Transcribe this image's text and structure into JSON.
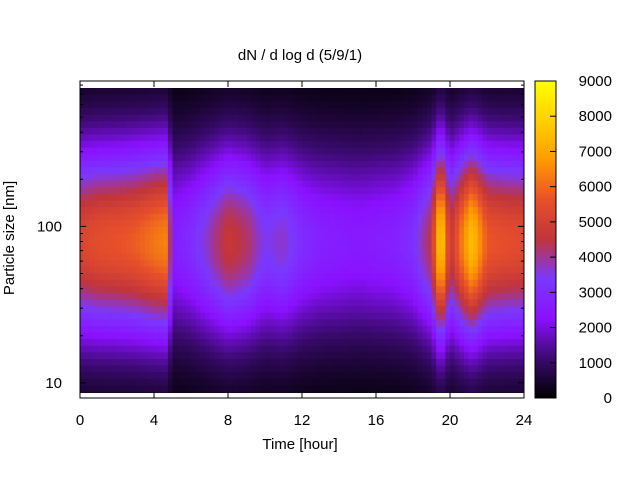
{
  "chart_data": {
    "type": "heatmap",
    "title": "dN / d log d (5/9/1)",
    "xlabel": "Time [hour]",
    "ylabel": "Particle size [nm]",
    "x_ticks": [
      "0",
      "4",
      "8",
      "12",
      "16",
      "20",
      "24"
    ],
    "x_tick_values": [
      0,
      4,
      8,
      12,
      16,
      20,
      24
    ],
    "xlim": [
      0,
      24
    ],
    "y_scale": "log",
    "y_ticks": [
      "10",
      "100"
    ],
    "y_tick_values": [
      10,
      100
    ],
    "ylim": [
      8,
      850
    ],
    "colorbar": {
      "ticks": [
        "0",
        "1000",
        "2000",
        "3000",
        "4000",
        "5000",
        "6000",
        "7000",
        "8000",
        "9000"
      ],
      "tick_values": [
        0,
        1000,
        2000,
        3000,
        4000,
        5000,
        6000,
        7000,
        8000,
        9000
      ],
      "range": [
        0,
        9000
      ],
      "colormap": [
        "#000000",
        "#3a0a6e",
        "#8a10ff",
        "#7a38ff",
        "#c0343c",
        "#e8502a",
        "#ff9a00",
        "#ffd000",
        "#ffff00"
      ]
    },
    "mode_peak_nm": 80,
    "hourly_peak_concentration": [
      {
        "hour": 0,
        "value": 5200
      },
      {
        "hour": 1,
        "value": 5500
      },
      {
        "hour": 2,
        "value": 5600
      },
      {
        "hour": 3,
        "value": 5800
      },
      {
        "hour": 4,
        "value": 6200
      },
      {
        "hour": 4.7,
        "value": 6400
      },
      {
        "hour": 5,
        "value": 2600
      },
      {
        "hour": 6,
        "value": 3000
      },
      {
        "hour": 7,
        "value": 3800
      },
      {
        "hour": 8,
        "value": 4700
      },
      {
        "hour": 9,
        "value": 4300
      },
      {
        "hour": 10,
        "value": 3400
      },
      {
        "hour": 11,
        "value": 3700
      },
      {
        "hour": 12,
        "value": 3000
      },
      {
        "hour": 13,
        "value": 2700
      },
      {
        "hour": 14,
        "value": 2600
      },
      {
        "hour": 15,
        "value": 2500
      },
      {
        "hour": 16,
        "value": 2600
      },
      {
        "hour": 17,
        "value": 2700
      },
      {
        "hour": 18,
        "value": 3100
      },
      {
        "hour": 19,
        "value": 4500
      },
      {
        "hour": 19.5,
        "value": 8200
      },
      {
        "hour": 20,
        "value": 4600
      },
      {
        "hour": 20.6,
        "value": 6200
      },
      {
        "hour": 21.2,
        "value": 7600
      },
      {
        "hour": 22,
        "value": 5700
      },
      {
        "hour": 23,
        "value": 5500
      },
      {
        "hour": 24,
        "value": 5400
      }
    ]
  }
}
